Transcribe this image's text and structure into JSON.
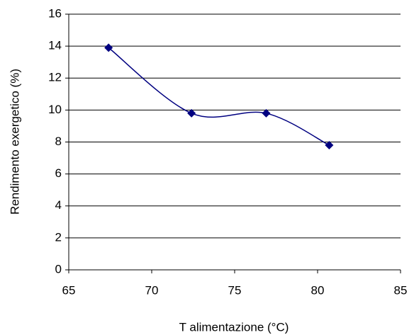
{
  "chart_data": {
    "type": "line",
    "xlabel": "T alimentazione (°C)",
    "ylabel": "Rendimento exergetico (%)",
    "x": [
      67.4,
      72.4,
      76.9,
      80.7
    ],
    "series": [
      {
        "color": "#000080",
        "values": [
          13.9,
          9.8,
          9.8,
          7.8
        ]
      }
    ],
    "xlim": [
      65,
      85
    ],
    "xticks": [
      65,
      70,
      75,
      80,
      85
    ],
    "ylim": [
      0,
      16
    ],
    "yticks": [
      0,
      2,
      4,
      6,
      8,
      10,
      12,
      14,
      16
    ],
    "grid": true,
    "smooth": true,
    "marker": "diamond"
  }
}
